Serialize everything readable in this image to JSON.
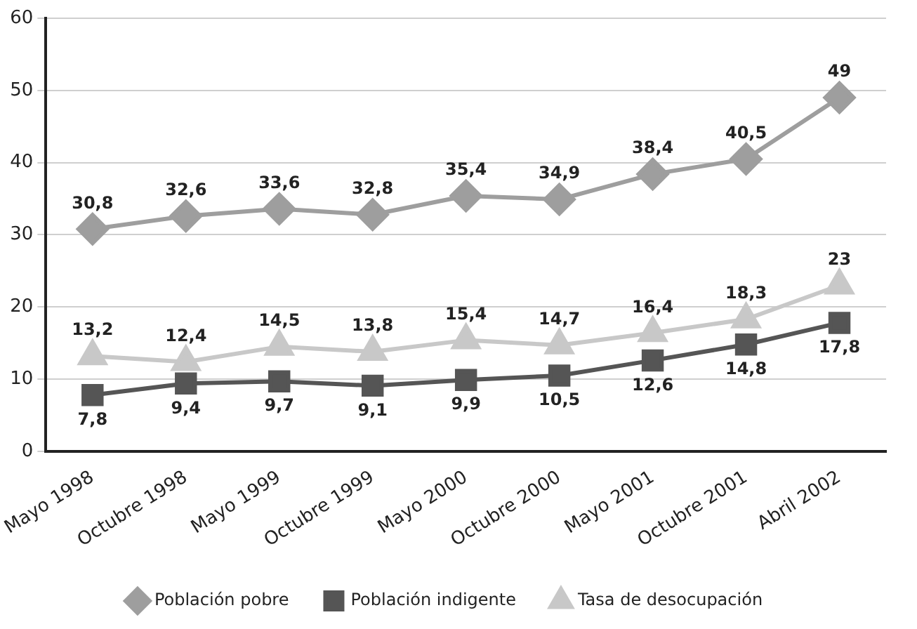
{
  "chart_data": {
    "type": "line",
    "categories": [
      "Mayo 1998",
      "Octubre 1998",
      "Mayo 1999",
      "Octubre 1999",
      "Mayo 2000",
      "Octubre 2000",
      "Mayo 2001",
      "Octubre 2001",
      "Abril 2002"
    ],
    "series": [
      {
        "name": "Población pobre",
        "color": "#9e9e9e",
        "marker": "diamond",
        "values": [
          30.8,
          32.6,
          33.6,
          32.8,
          35.4,
          34.9,
          38.4,
          40.5,
          49
        ],
        "value_labels": [
          "30,8",
          "32,6",
          "33,6",
          "32,8",
          "35,4",
          "34,9",
          "38,4",
          "40,5",
          "49"
        ]
      },
      {
        "name": "Población indigente",
        "color": "#555555",
        "marker": "square",
        "values": [
          7.8,
          9.4,
          9.7,
          9.1,
          9.9,
          10.5,
          12.6,
          14.8,
          17.8
        ],
        "value_labels": [
          "7,8",
          "9,4",
          "9,7",
          "9,1",
          "9,9",
          "10,5",
          "12,6",
          "14,8",
          "17,8"
        ]
      },
      {
        "name": "Tasa de desocupación",
        "color": "#c8c8c8",
        "marker": "triangle",
        "values": [
          13.2,
          12.4,
          14.5,
          13.8,
          15.4,
          14.7,
          16.4,
          18.3,
          23
        ],
        "value_labels": [
          "13,2",
          "12,4",
          "14,5",
          "13,8",
          "15,4",
          "14,7",
          "16,4",
          "18,3",
          "23"
        ]
      }
    ],
    "ylim": [
      0,
      60
    ],
    "yticks": [
      0,
      10,
      20,
      30,
      40,
      50,
      60
    ],
    "grid": "y",
    "legend": "bottom",
    "line_style": "solid"
  }
}
